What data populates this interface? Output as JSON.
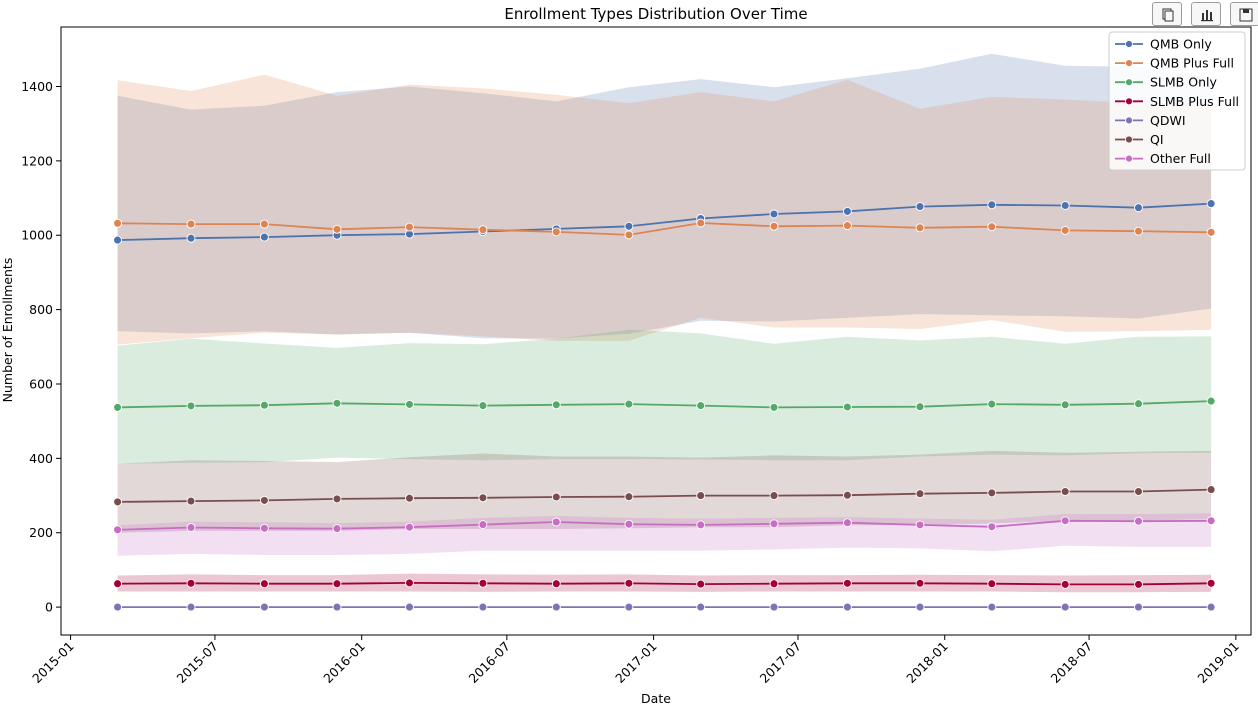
{
  "toolbar": {
    "buttons": [
      {
        "name": "copy-button",
        "icon": "copy-icon"
      },
      {
        "name": "chart-view-button",
        "icon": "bar-chart-icon"
      },
      {
        "name": "save-button",
        "icon": "save-icon"
      }
    ]
  },
  "chart_data": {
    "type": "line",
    "title": "Enrollment Types Distribution Over Time",
    "xlabel": "Date",
    "ylabel": "Number of Enrollments",
    "ylim": [
      -75,
      1560
    ],
    "xlim": [
      "2014-12-20",
      "2019-01-20"
    ],
    "x_ticks": [
      "2015-01",
      "2015-07",
      "2016-01",
      "2016-07",
      "2017-01",
      "2017-07",
      "2018-01",
      "2018-07",
      "2019-01"
    ],
    "y_ticks": [
      0,
      200,
      400,
      600,
      800,
      1000,
      1200,
      1400
    ],
    "legend_position": "top-right",
    "grid": false,
    "confidence_bands": true,
    "x": [
      "2015-03-01",
      "2015-06-01",
      "2015-09-01",
      "2015-12-01",
      "2016-03-01",
      "2016-06-01",
      "2016-09-01",
      "2016-12-01",
      "2017-03-01",
      "2017-06-01",
      "2017-09-01",
      "2017-12-01",
      "2018-03-01",
      "2018-06-01",
      "2018-09-01",
      "2018-12-01"
    ],
    "series": [
      {
        "name": "QMB Only",
        "color": "#4c72b0",
        "values": [
          987,
          992,
          995,
          1000,
          1003,
          1010,
          1017,
          1024,
          1045,
          1057,
          1064,
          1077,
          1082,
          1080,
          1074,
          1085
        ],
        "band_upper": [
          1375,
          1338,
          1348,
          1385,
          1400,
          1382,
          1360,
          1398,
          1420,
          1398,
          1422,
          1448,
          1488,
          1456,
          1453,
          1423
        ],
        "band_lower": [
          742,
          736,
          742,
          733,
          738,
          723,
          722,
          735,
          770,
          768,
          778,
          788,
          785,
          782,
          776,
          803
        ]
      },
      {
        "name": "QMB Plus Full",
        "color": "#dd8452",
        "values": [
          1032,
          1030,
          1030,
          1016,
          1022,
          1015,
          1009,
          1001,
          1033,
          1024,
          1026,
          1020,
          1023,
          1013,
          1011,
          1008
        ],
        "band_upper": [
          1417,
          1388,
          1432,
          1375,
          1405,
          1395,
          1378,
          1355,
          1385,
          1360,
          1418,
          1340,
          1372,
          1365,
          1355,
          1360
        ],
        "band_lower": [
          706,
          723,
          738,
          733,
          738,
          728,
          716,
          716,
          778,
          752,
          752,
          748,
          772,
          740,
          742,
          746
        ]
      },
      {
        "name": "SLMB Only",
        "color": "#55a868",
        "values": [
          537,
          541,
          543,
          548,
          545,
          542,
          544,
          546,
          542,
          537,
          538,
          539,
          546,
          544,
          547,
          554
        ],
        "band_upper": [
          703,
          722,
          709,
          697,
          710,
          707,
          722,
          746,
          736,
          708,
          727,
          717,
          727,
          708,
          727,
          728
        ],
        "band_lower": [
          385,
          388,
          390,
          402,
          398,
          395,
          398,
          398,
          397,
          395,
          395,
          405,
          410,
          408,
          414,
          415
        ]
      },
      {
        "name": "SLMB Plus Full",
        "color": "#a3003a",
        "values": [
          63,
          64,
          63,
          63,
          65,
          64,
          63,
          64,
          62,
          63,
          64,
          64,
          63,
          61,
          61,
          64
        ],
        "band_upper": [
          85,
          88,
          86,
          86,
          90,
          88,
          87,
          88,
          85,
          86,
          86,
          87,
          86,
          85,
          86,
          87
        ],
        "band_lower": [
          42,
          42,
          42,
          42,
          42,
          41,
          42,
          42,
          41,
          42,
          42,
          42,
          42,
          40,
          40,
          41
        ]
      },
      {
        "name": "QDWI",
        "color": "#8172b3",
        "values": [
          0,
          0,
          0,
          0,
          0,
          0,
          0,
          0,
          0,
          0,
          0,
          0,
          0,
          0,
          0,
          0
        ],
        "band_upper": [
          0,
          0,
          0,
          0,
          0,
          0,
          0,
          0,
          0,
          0,
          0,
          0,
          0,
          0,
          0,
          0
        ],
        "band_lower": [
          0,
          0,
          0,
          0,
          0,
          0,
          0,
          0,
          0,
          0,
          0,
          0,
          0,
          0,
          0,
          0
        ]
      },
      {
        "name": "QI",
        "color": "#7a4d4d",
        "values": [
          283,
          285,
          287,
          291,
          293,
          294,
          296,
          297,
          300,
          300,
          301,
          305,
          307,
          311,
          311,
          316
        ],
        "band_upper": [
          385,
          395,
          393,
          390,
          403,
          413,
          405,
          405,
          402,
          408,
          405,
          410,
          420,
          415,
          418,
          420
        ],
        "band_lower": [
          200,
          205,
          205,
          205,
          210,
          210,
          210,
          212,
          215,
          215,
          220,
          220,
          225,
          232,
          232,
          237
        ]
      },
      {
        "name": "Other Full",
        "color": "#c76dc4",
        "values": [
          208,
          214,
          212,
          211,
          215,
          222,
          229,
          223,
          221,
          224,
          227,
          221,
          216,
          232,
          231,
          232
        ],
        "band_upper": [
          220,
          230,
          228,
          226,
          230,
          240,
          245,
          240,
          238,
          240,
          242,
          238,
          235,
          250,
          250,
          252
        ],
        "band_lower": [
          138,
          143,
          140,
          140,
          143,
          152,
          152,
          152,
          152,
          155,
          160,
          158,
          150,
          165,
          162,
          162
        ]
      }
    ]
  }
}
